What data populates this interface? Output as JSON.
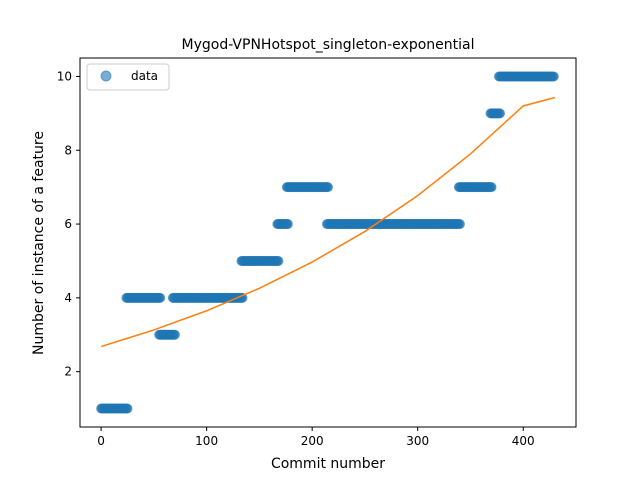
{
  "chart_data": {
    "type": "scatter",
    "title": "Mygod-VPNHotspot_singleton-exponential",
    "xlabel": "Commit number",
    "ylabel": "Number of instance of a feature",
    "xlim": [
      -20,
      450
    ],
    "ylim": [
      0.5,
      10.5
    ],
    "xticks": [
      0,
      100,
      200,
      300,
      400
    ],
    "yticks": [
      2,
      4,
      6,
      8,
      10
    ],
    "legend": {
      "placement": "top-left",
      "entries": [
        "data"
      ]
    },
    "colors": {
      "data": "#1f77b4",
      "fit": "#ff7f0e"
    },
    "series": [
      {
        "name": "data",
        "kind": "points",
        "segments": [
          {
            "x_start": 0,
            "x_end": 25,
            "y": 1
          },
          {
            "x_start": 24,
            "x_end": 56,
            "y": 4
          },
          {
            "x_start": 55,
            "x_end": 70,
            "y": 3
          },
          {
            "x_start": 68,
            "x_end": 134,
            "y": 4
          },
          {
            "x_start": 133,
            "x_end": 168,
            "y": 5
          },
          {
            "x_start": 167,
            "x_end": 177,
            "y": 6
          },
          {
            "x_start": 176,
            "x_end": 215,
            "y": 7
          },
          {
            "x_start": 214,
            "x_end": 340,
            "y": 6
          },
          {
            "x_start": 339,
            "x_end": 370,
            "y": 7
          },
          {
            "x_start": 369,
            "x_end": 378,
            "y": 9
          },
          {
            "x_start": 377,
            "x_end": 429,
            "y": 10
          }
        ]
      },
      {
        "kind": "line",
        "x": [
          0,
          50,
          100,
          150,
          200,
          250,
          300,
          350,
          400,
          430
        ],
        "y": [
          2.68,
          3.13,
          3.65,
          4.26,
          4.97,
          5.8,
          6.77,
          7.9,
          9.2,
          9.43
        ]
      }
    ]
  }
}
